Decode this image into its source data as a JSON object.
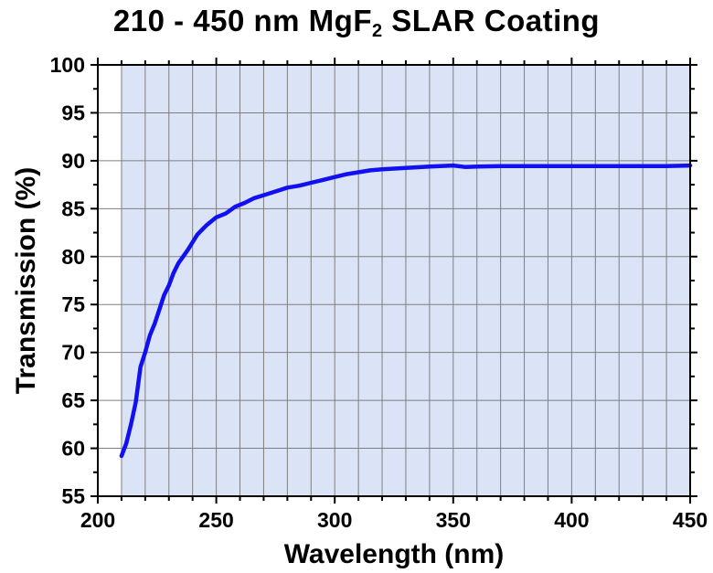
{
  "chart_data": {
    "type": "line",
    "title": {
      "prefix": "210 - 450 nm MgF",
      "subscript": "2",
      "suffix": " SLAR Coating"
    },
    "xlabel": "Wavelength (nm)",
    "ylabel": "Transmission (%)",
    "xlim": [
      200,
      450
    ],
    "ylim": [
      55,
      100
    ],
    "x_ticks": [
      200,
      250,
      300,
      350,
      400,
      450
    ],
    "y_ticks": [
      55,
      60,
      65,
      70,
      75,
      80,
      85,
      90,
      95,
      100
    ],
    "grid": true,
    "shaded_region": [
      210,
      450
    ],
    "colors": {
      "line": "#1010f0",
      "shade": "#dbe3f6",
      "grid": "#7f7f7f",
      "axis": "#000000"
    },
    "series": [
      {
        "x": [
          210,
          212,
          214,
          216,
          218,
          220,
          222,
          224,
          226,
          228,
          230,
          232,
          234,
          236,
          238,
          240,
          242,
          244,
          246,
          248,
          250,
          254,
          258,
          262,
          266,
          270,
          275,
          280,
          285,
          290,
          295,
          300,
          305,
          310,
          315,
          320,
          330,
          340,
          350,
          355,
          360,
          370,
          380,
          390,
          400,
          410,
          420,
          430,
          440,
          450
        ],
        "y": [
          59.2,
          60.5,
          62.5,
          64.8,
          68.5,
          70.0,
          71.8,
          73.0,
          74.5,
          76.0,
          77.0,
          78.3,
          79.3,
          80.0,
          80.7,
          81.5,
          82.3,
          82.8,
          83.3,
          83.7,
          84.1,
          84.5,
          85.2,
          85.6,
          86.1,
          86.4,
          86.8,
          87.2,
          87.4,
          87.7,
          88.0,
          88.3,
          88.6,
          88.8,
          89.0,
          89.1,
          89.25,
          89.4,
          89.5,
          89.35,
          89.4,
          89.45,
          89.45,
          89.45,
          89.45,
          89.45,
          89.45,
          89.45,
          89.45,
          89.5
        ]
      }
    ]
  }
}
